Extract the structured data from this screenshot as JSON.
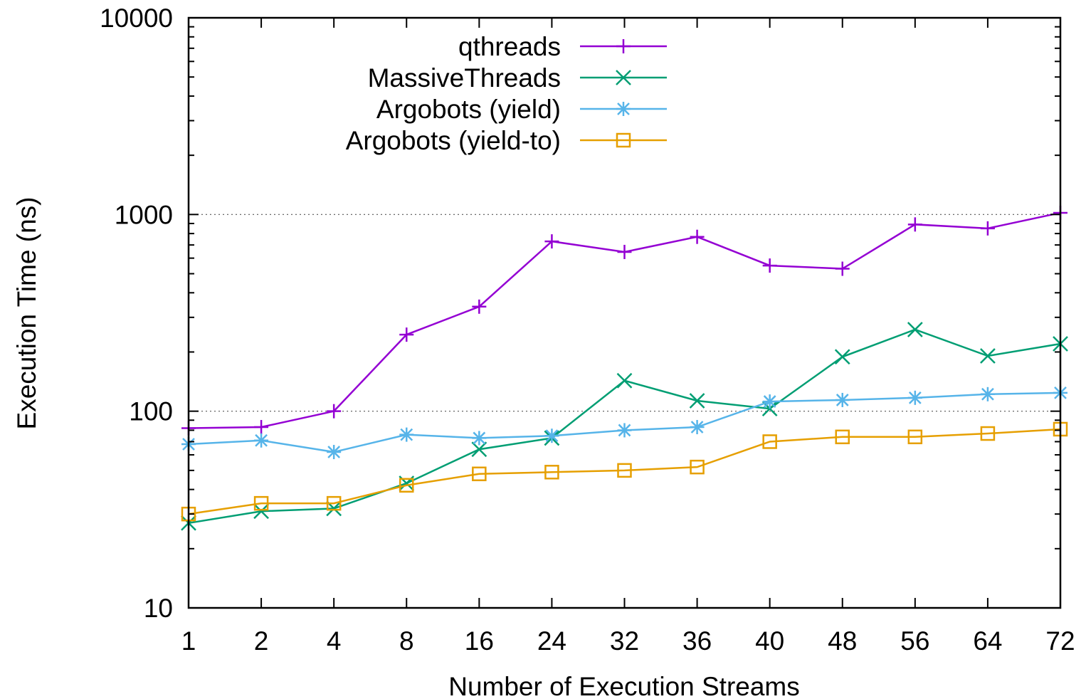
{
  "chart_data": {
    "type": "line",
    "xlabel": "Number of Execution Streams",
    "ylabel": "Execution Time (ns)",
    "y_scale": "log",
    "ylim": [
      10,
      10000
    ],
    "y_ticks": [
      "10",
      "100",
      "1000",
      "10000"
    ],
    "grid": "horizontal dotted at 100 and 1000",
    "legend_position": "top-left",
    "categories": [
      "1",
      "2",
      "4",
      "8",
      "16",
      "24",
      "32",
      "36",
      "40",
      "48",
      "56",
      "64",
      "72"
    ],
    "series": [
      {
        "name": "qthreads",
        "color": "#9400d3",
        "marker": "plus",
        "values": [
          82,
          83,
          100,
          245,
          340,
          730,
          645,
          770,
          550,
          530,
          890,
          850,
          1020
        ]
      },
      {
        "name": "MassiveThreads",
        "color": "#009e73",
        "marker": "cross",
        "values": [
          27,
          31,
          32,
          43,
          64,
          73,
          143,
          113,
          103,
          189,
          260,
          191,
          220
        ]
      },
      {
        "name": "Argobots (yield)",
        "color": "#56b4e9",
        "marker": "star",
        "values": [
          68,
          71,
          62,
          76,
          73,
          75,
          80,
          83,
          112,
          114,
          117,
          122,
          124
        ]
      },
      {
        "name": "Argobots (yield-to)",
        "color": "#e69f00",
        "marker": "square",
        "values": [
          30,
          34,
          34,
          42,
          48,
          49,
          50,
          52,
          70,
          74,
          74,
          77,
          81
        ]
      }
    ]
  }
}
